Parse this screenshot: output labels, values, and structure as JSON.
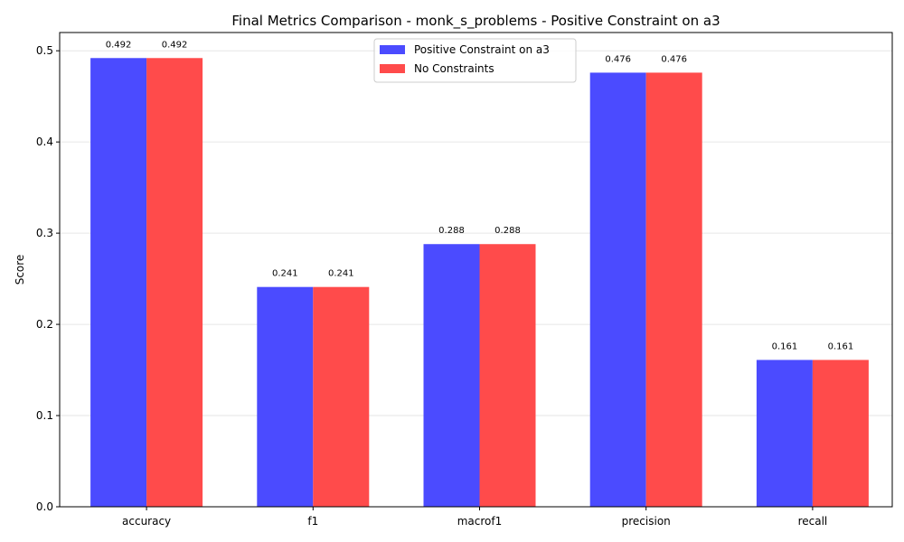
{
  "chart_data": {
    "type": "bar",
    "title": "Final Metrics Comparison - monk_s_problems - Positive Constraint on a3",
    "xlabel": "",
    "ylabel": "Score",
    "categories": [
      "accuracy",
      "f1",
      "macrof1",
      "precision",
      "recall"
    ],
    "series": [
      {
        "name": "Positive Constraint on a3",
        "color": "#4b4bff",
        "values": [
          0.492,
          0.241,
          0.288,
          0.476,
          0.161
        ],
        "labels": [
          "0.492",
          "0.241",
          "0.288",
          "0.476",
          "0.161"
        ]
      },
      {
        "name": "No Constraints",
        "color": "#ff4b4b",
        "values": [
          0.492,
          0.241,
          0.288,
          0.476,
          0.161
        ],
        "labels": [
          "0.492",
          "0.241",
          "0.288",
          "0.476",
          "0.161"
        ]
      }
    ],
    "ylim": [
      0,
      0.52
    ],
    "yticks": [
      "0.0",
      "0.1",
      "0.2",
      "0.3",
      "0.4",
      "0.5"
    ],
    "ytick_values": [
      0,
      0.1,
      0.2,
      0.3,
      0.4,
      0.5
    ],
    "grid": "y",
    "legend_position": "top-center"
  }
}
